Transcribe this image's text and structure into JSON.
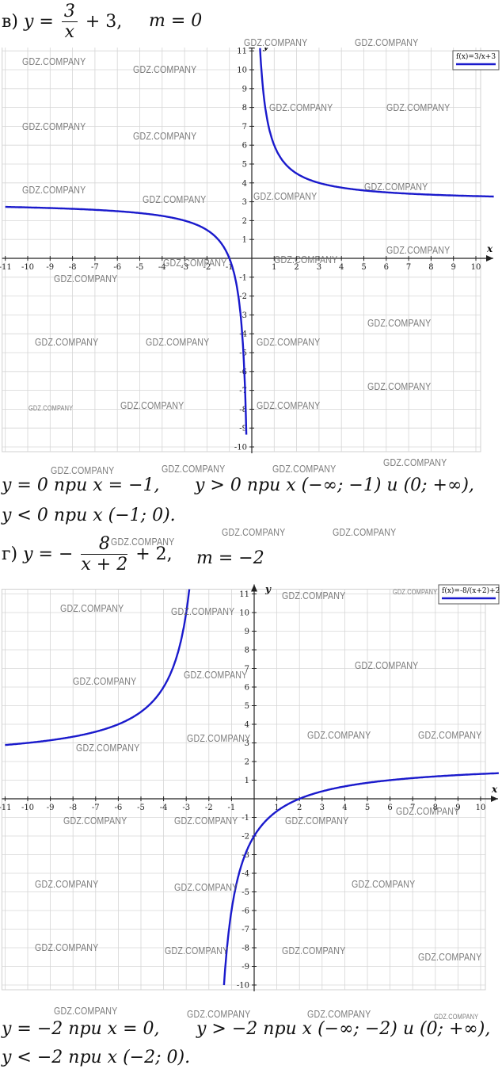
{
  "part_v": {
    "label": "в)",
    "func_lhs": "y =",
    "frac_num": "3",
    "frac_den": "x",
    "func_rest": "+ 3,",
    "param": "m = 0",
    "legend": "f(x)=3/x+3",
    "line1_a": "y = 0 при x = −1,",
    "line1_b": "y > 0 при x (−∞; −1) и (0; +∞),",
    "line2": "y < 0 при x (−1; 0)."
  },
  "part_g": {
    "label": "г)",
    "func_lhs": "y = −",
    "frac_num": "8",
    "frac_den": "x + 2",
    "func_rest": "+ 2,",
    "param": "m = −2",
    "legend": "f(x)=-8/(x+2)+2",
    "line1_a": "y = −2 при x = 0,",
    "line1_b": "y > −2 при x (−∞; −2) и (0; +∞),",
    "line2": "y < −2 при x (−2; 0)."
  },
  "watermark": "GDZ.COMPANY",
  "chart_data": [
    {
      "type": "line",
      "formula": "f(x)=3/x+3",
      "series": [
        {
          "name": "f(x)=3/x+3",
          "color": "#1a1acc",
          "expression": "3/x+3",
          "asymptote_x": 0
        }
      ],
      "xlabel": "x",
      "ylabel": "y",
      "xlim": [
        -11,
        10
      ],
      "ylim": [
        -10,
        11
      ],
      "x_ticks": [
        -11,
        -10,
        -9,
        -8,
        -7,
        -6,
        -5,
        -4,
        -3,
        -2,
        -1,
        1,
        2,
        3,
        4,
        5,
        6,
        7,
        8,
        9,
        10
      ],
      "y_ticks": [
        11,
        10,
        9,
        8,
        7,
        6,
        5,
        4,
        3,
        2,
        1,
        -1,
        -2,
        -3,
        -4,
        -5,
        -6,
        -7,
        -8,
        -9,
        -10
      ],
      "grid": true,
      "legend_position": "top-right"
    },
    {
      "type": "line",
      "formula": "f(x)=-8/(x+2)+2",
      "series": [
        {
          "name": "f(x)=-8/(x+2)+2",
          "color": "#1a1acc",
          "expression": "-8/(x+2)+2",
          "asymptote_x": -2
        }
      ],
      "xlabel": "x",
      "ylabel": "y",
      "xlim": [
        -11,
        10
      ],
      "ylim": [
        -10,
        11
      ],
      "x_ticks": [
        -11,
        -10,
        -9,
        -8,
        -7,
        -6,
        -5,
        -4,
        -3,
        -2,
        -1,
        1,
        2,
        3,
        4,
        5,
        6,
        7,
        8,
        9,
        10
      ],
      "y_ticks": [
        11,
        10,
        9,
        8,
        7,
        6,
        5,
        4,
        3,
        2,
        1,
        -1,
        -2,
        -3,
        -4,
        -5,
        -6,
        -7,
        -8,
        -9,
        -10
      ],
      "grid": true,
      "legend_position": "top-right"
    }
  ]
}
